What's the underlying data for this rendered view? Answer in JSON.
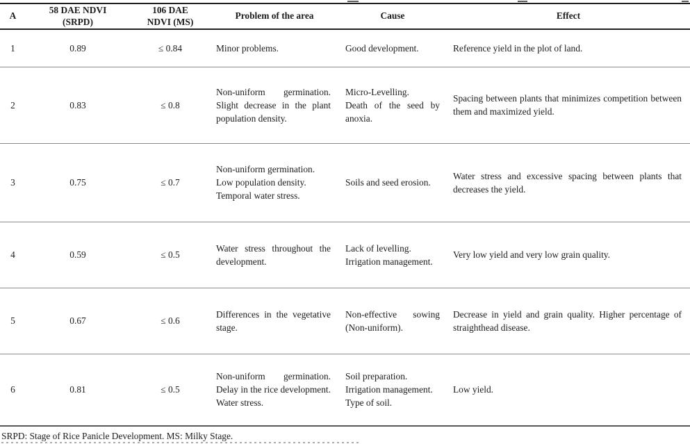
{
  "table": {
    "columns": [
      {
        "key": "a",
        "label": "A"
      },
      {
        "key": "ndvi58",
        "label": "58 DAE NDVI\n(SRPD)"
      },
      {
        "key": "ndvi106",
        "label": "106 DAE\nNDVI (MS)"
      },
      {
        "key": "problem",
        "label": "Problem of the area"
      },
      {
        "key": "cause",
        "label": "Cause"
      },
      {
        "key": "effect",
        "label": "Effect"
      }
    ],
    "rows": [
      {
        "a": "1",
        "ndvi58": "0.89",
        "ndvi106": "≤ 0.84",
        "problem": [
          "Minor problems."
        ],
        "cause": [
          "Good development."
        ],
        "effect": [
          "Reference yield in the plot of land."
        ]
      },
      {
        "a": "2",
        "ndvi58": "0.83",
        "ndvi106": "≤ 0.8",
        "problem": [
          "Non-uniform germination. Slight decrease in the plant population density."
        ],
        "cause": [
          "Micro-Levelling.",
          "Death of the seed by anoxia."
        ],
        "effect": [
          "Spacing between plants that minimizes competition between them and maximized yield."
        ]
      },
      {
        "a": "3",
        "ndvi58": "0.75",
        "ndvi106": "≤ 0.7",
        "problem": [
          "Non-uniform germination.",
          "Low population density.",
          "Temporal water stress."
        ],
        "cause": [
          "Soils and seed erosion."
        ],
        "effect": [
          "Water stress and excessive spacing between plants that decreases the yield."
        ]
      },
      {
        "a": "4",
        "ndvi58": "0.59",
        "ndvi106": "≤ 0.5",
        "problem": [
          "Water stress throughout the development."
        ],
        "cause": [
          "Lack of levelling.",
          "Irrigation management."
        ],
        "effect": [
          "Very low yield and very low grain quality."
        ]
      },
      {
        "a": "5",
        "ndvi58": "0.67",
        "ndvi106": "≤ 0.6",
        "problem": [
          "Differences in the vegetative stage."
        ],
        "cause": [
          "Non-effective sowing (Non-uniform)."
        ],
        "effect": [
          "Decrease in yield and grain quality. Higher percentage of straighthead disease."
        ]
      },
      {
        "a": "6",
        "ndvi58": "0.81",
        "ndvi106": "≤ 0.5",
        "problem": [
          "Non-uniform germination. Delay in the rice development. Water stress."
        ],
        "cause": [
          "Soil preparation.",
          "Irrigation management.",
          "Type of soil."
        ],
        "effect": [
          "Low yield."
        ]
      }
    ]
  },
  "footnote": "SRPD: Stage of Rice Panicle Development. MS: Milky Stage.",
  "colors": {
    "text": "#1c1c1c",
    "rule_dark": "#1f1f1f",
    "rule_light": "#8a8a8a",
    "rule_bottom": "#565656",
    "background": "#ffffff"
  }
}
